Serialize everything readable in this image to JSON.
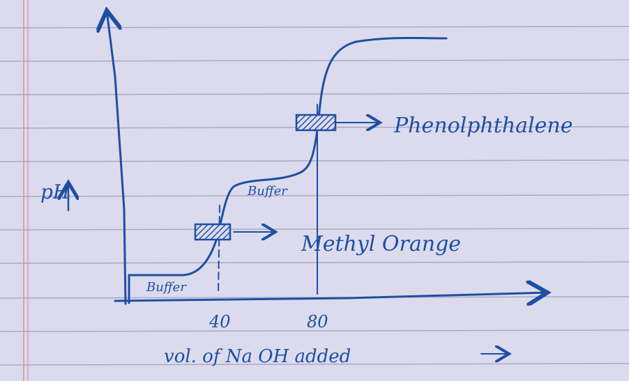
{
  "y_axis": {
    "label": "pH"
  },
  "x_axis": {
    "label": "vol. of Na OH added",
    "marks": [
      "40",
      "80"
    ]
  },
  "regions": [
    "Buffer",
    "Buffer"
  ],
  "indicators": [
    "Methyl Orange",
    "Phenolphthalene"
  ]
}
